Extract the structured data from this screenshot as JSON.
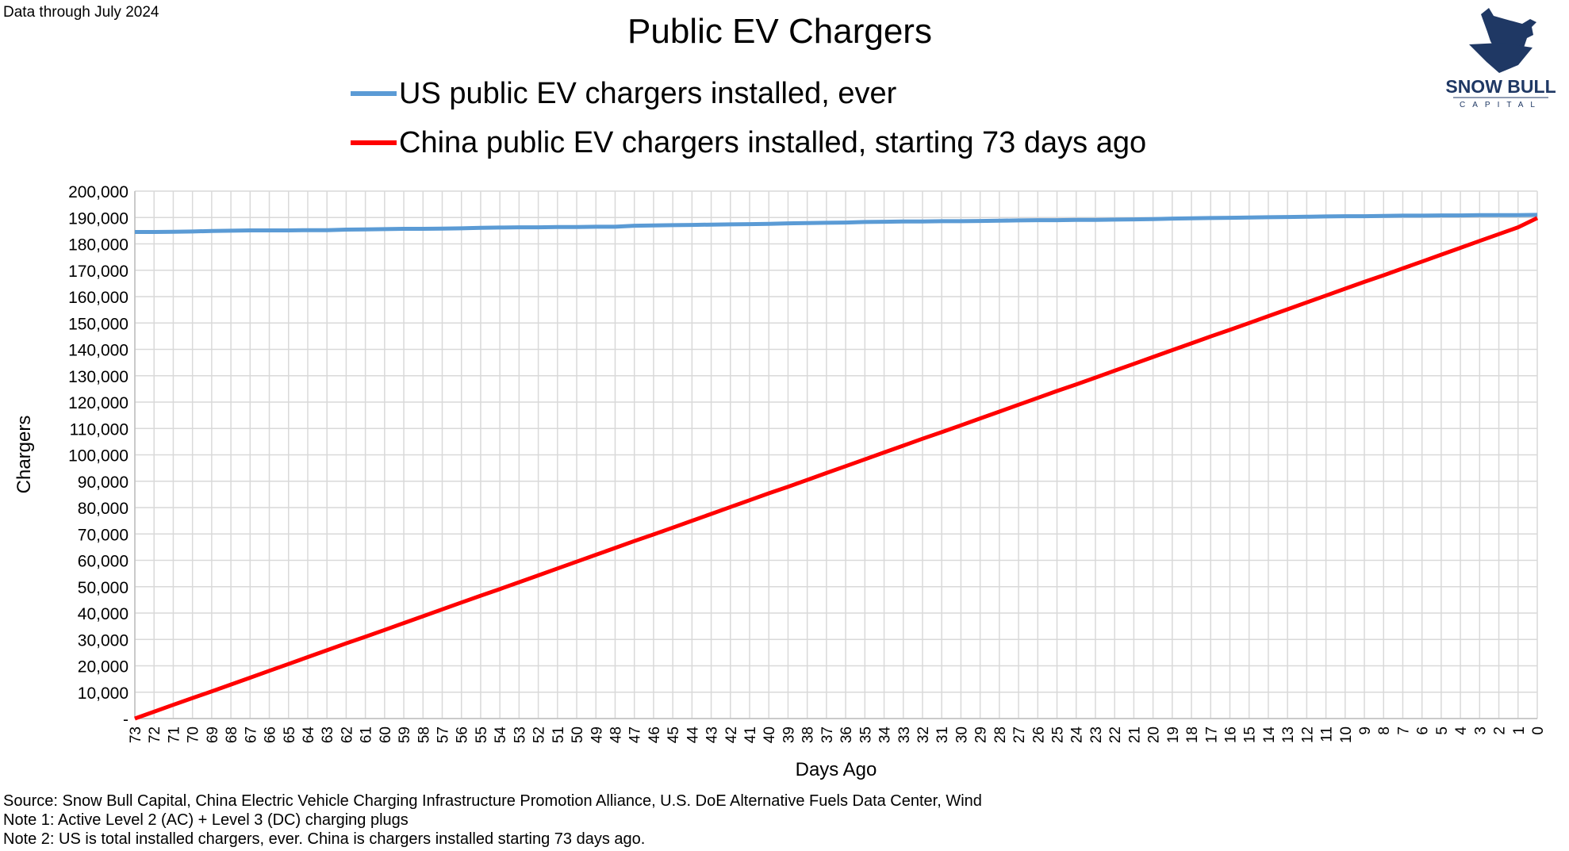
{
  "header": {
    "data_note": "Data through July 2024"
  },
  "logo": {
    "name": "SNOW BULL",
    "sub": "CAPITAL"
  },
  "chart_data": {
    "type": "line",
    "title": "Public EV Chargers",
    "xlabel": "Days Ago",
    "ylabel": "Chargers",
    "x": [
      73,
      72,
      71,
      70,
      69,
      68,
      67,
      66,
      65,
      64,
      63,
      62,
      61,
      60,
      59,
      58,
      57,
      56,
      55,
      54,
      53,
      52,
      51,
      50,
      49,
      48,
      47,
      46,
      45,
      44,
      43,
      42,
      41,
      40,
      39,
      38,
      37,
      36,
      35,
      34,
      33,
      32,
      31,
      30,
      29,
      28,
      27,
      26,
      25,
      24,
      23,
      22,
      21,
      20,
      19,
      18,
      17,
      16,
      15,
      14,
      13,
      12,
      11,
      10,
      9,
      8,
      7,
      6,
      5,
      4,
      3,
      2,
      1,
      0
    ],
    "xlim": [
      73,
      0
    ],
    "ylim": [
      0,
      200000
    ],
    "yticks": [
      0,
      10000,
      20000,
      30000,
      40000,
      50000,
      60000,
      70000,
      80000,
      90000,
      100000,
      110000,
      120000,
      130000,
      140000,
      150000,
      160000,
      170000,
      180000,
      190000,
      200000
    ],
    "ytick_labels": [
      "-",
      "10,000",
      "20,000",
      "30,000",
      "40,000",
      "50,000",
      "60,000",
      "70,000",
      "80,000",
      "90,000",
      "100,000",
      "110,000",
      "120,000",
      "130,000",
      "140,000",
      "150,000",
      "160,000",
      "170,000",
      "180,000",
      "190,000",
      "200,000"
    ],
    "grid": true,
    "legend_position": "top",
    "series": [
      {
        "name": "US public EV chargers installed, ever",
        "color": "#5b9bd5",
        "values": [
          184500,
          184500,
          184600,
          184700,
          184900,
          185000,
          185100,
          185100,
          185100,
          185200,
          185200,
          185400,
          185500,
          185600,
          185700,
          185700,
          185800,
          185900,
          186100,
          186200,
          186300,
          186300,
          186400,
          186400,
          186500,
          186500,
          186900,
          187000,
          187100,
          187200,
          187300,
          187400,
          187500,
          187600,
          187800,
          187900,
          188000,
          188100,
          188300,
          188400,
          188500,
          188500,
          188600,
          188600,
          188700,
          188800,
          188900,
          189000,
          189000,
          189100,
          189100,
          189200,
          189300,
          189400,
          189600,
          189700,
          189800,
          189900,
          190000,
          190100,
          190200,
          190300,
          190400,
          190500,
          190500,
          190600,
          190700,
          190700,
          190800,
          190800,
          190900,
          190900,
          190900,
          191000
        ]
      },
      {
        "name": "China public EV chargers installed, starting 73 days ago",
        "color": "#ff0000",
        "values": [
          0,
          2600,
          5200,
          7800,
          10300,
          12900,
          15500,
          18100,
          20700,
          23300,
          25900,
          28500,
          31000,
          33600,
          36200,
          38800,
          41400,
          44000,
          46600,
          49100,
          51700,
          54300,
          56900,
          59500,
          62100,
          64700,
          67300,
          69800,
          72400,
          75000,
          77600,
          80200,
          82800,
          85400,
          87900,
          90500,
          93100,
          95700,
          98300,
          100900,
          103500,
          106100,
          108600,
          111200,
          113800,
          116400,
          119000,
          121600,
          124200,
          126700,
          129300,
          131900,
          134500,
          137100,
          139700,
          142300,
          144900,
          147400,
          150000,
          152600,
          155200,
          157800,
          160400,
          163000,
          165600,
          168100,
          170700,
          173300,
          175900,
          178500,
          181100,
          183700,
          186300,
          189800
        ]
      }
    ]
  },
  "footer": {
    "source": "Source: Snow Bull Capital, China Electric Vehicle Charging Infrastructure Promotion Alliance, U.S. DoE Alternative Fuels Data Center, Wind",
    "note1": "Note 1: Active Level 2 (AC) + Level 3 (DC) charging plugs",
    "note2": "Note 2: US is total installed chargers, ever. China is chargers installed starting 73 days ago."
  }
}
